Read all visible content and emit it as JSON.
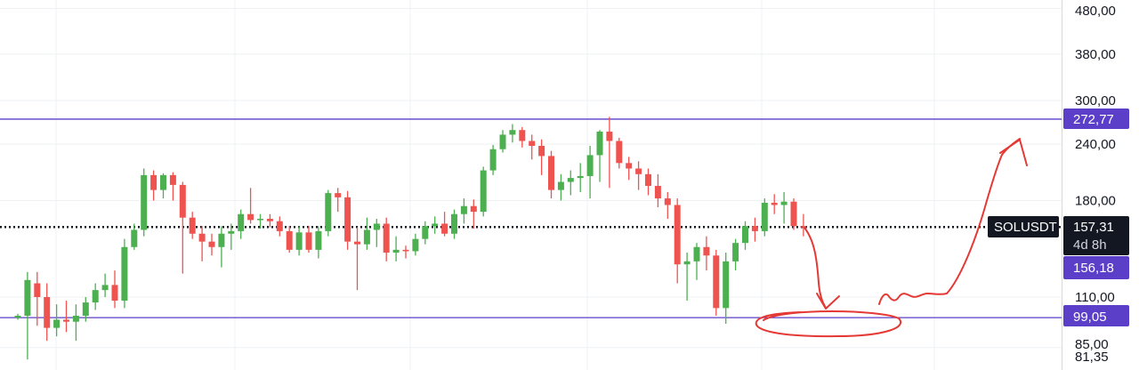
{
  "chart_data": {
    "type": "candlestick",
    "symbol": "SOLUSDT",
    "scale": "log",
    "ylim": [
      79,
      520
    ],
    "grid": true,
    "price_axis": {
      "ticks": [
        {
          "value": 480,
          "label": "480,00"
        },
        {
          "value": 380,
          "label": "380,00"
        },
        {
          "value": 300,
          "label": "300,00"
        },
        {
          "value": 240,
          "label": "240,00"
        },
        {
          "value": 180,
          "label": "180,00"
        },
        {
          "value": 110,
          "label": "110,00"
        },
        {
          "value": 85,
          "label": "85,00"
        },
        {
          "value": 81.35,
          "label": "81,35"
        }
      ]
    },
    "horizontal_levels": [
      {
        "value": 272.77,
        "label": "272,77",
        "color": "#5b3fc8"
      },
      {
        "value": 99.05,
        "label": "99,05",
        "color": "#5b3fc8"
      }
    ],
    "current_price": {
      "value": 157.31,
      "label": "157,31",
      "countdown": "4d 8h",
      "line_style": "dotted"
    },
    "secondary_price": {
      "value": 156.18,
      "label": "156,18"
    },
    "colors": {
      "up": "#26a69a",
      "up_fill": "#4caf50",
      "down": "#ef5350",
      "level": "#5b3fc8",
      "drawing": "#e53935",
      "grid": "#eef0f3"
    },
    "candles": [
      [
        99,
        101,
        98,
        100
      ],
      [
        100,
        125,
        80,
        120
      ],
      [
        118,
        125,
        95,
        110
      ],
      [
        110,
        118,
        88,
        94
      ],
      [
        94,
        106,
        90,
        98
      ],
      [
        98,
        108,
        92,
        97
      ],
      [
        97,
        106,
        88,
        100
      ],
      [
        100,
        110,
        97,
        107
      ],
      [
        107,
        118,
        103,
        114
      ],
      [
        114,
        124,
        110,
        117
      ],
      [
        117,
        126,
        104,
        108
      ],
      [
        108,
        148,
        104,
        142
      ],
      [
        142,
        160,
        140,
        155
      ],
      [
        155,
        212,
        150,
        205
      ],
      [
        205,
        210,
        180,
        190
      ],
      [
        190,
        207,
        182,
        205
      ],
      [
        205,
        208,
        180,
        195
      ],
      [
        195,
        198,
        124,
        165
      ],
      [
        165,
        170,
        148,
        152
      ],
      [
        152,
        158,
        132,
        146
      ],
      [
        146,
        152,
        136,
        142
      ],
      [
        142,
        158,
        128,
        152
      ],
      [
        152,
        160,
        140,
        154
      ],
      [
        154,
        172,
        148,
        168
      ],
      [
        168,
        192,
        160,
        163
      ],
      [
        163,
        168,
        156,
        164
      ],
      [
        164,
        168,
        157,
        162
      ],
      [
        162,
        166,
        150,
        154
      ],
      [
        154,
        158,
        138,
        140
      ],
      [
        140,
        158,
        136,
        153
      ],
      [
        153,
        158,
        138,
        140
      ],
      [
        140,
        158,
        134,
        154
      ],
      [
        154,
        190,
        150,
        187
      ],
      [
        187,
        192,
        170,
        183
      ],
      [
        183,
        189,
        140,
        146
      ],
      [
        146,
        157,
        114,
        144
      ],
      [
        144,
        165,
        140,
        155
      ],
      [
        155,
        164,
        142,
        160
      ],
      [
        160,
        165,
        132,
        138
      ],
      [
        138,
        150,
        132,
        140
      ],
      [
        140,
        143,
        134,
        139
      ],
      [
        139,
        152,
        136,
        148
      ],
      [
        148,
        162,
        144,
        158
      ],
      [
        158,
        166,
        152,
        160
      ],
      [
        160,
        170,
        150,
        152
      ],
      [
        152,
        172,
        148,
        168
      ],
      [
        168,
        182,
        160,
        175
      ],
      [
        175,
        181,
        156,
        170
      ],
      [
        170,
        214,
        166,
        210
      ],
      [
        210,
        239,
        205,
        234
      ],
      [
        234,
        258,
        230,
        252
      ],
      [
        252,
        266,
        242,
        258
      ],
      [
        258,
        262,
        236,
        244
      ],
      [
        244,
        252,
        222,
        238
      ],
      [
        238,
        246,
        205,
        226
      ],
      [
        226,
        232,
        182,
        190
      ],
      [
        190,
        206,
        180,
        198
      ],
      [
        198,
        210,
        185,
        202
      ],
      [
        202,
        218,
        188,
        204
      ],
      [
        204,
        238,
        182,
        227
      ],
      [
        227,
        258,
        198,
        256
      ],
      [
        256,
        276,
        192,
        244
      ],
      [
        244,
        248,
        212,
        218
      ],
      [
        218,
        225,
        200,
        212
      ],
      [
        212,
        220,
        190,
        206
      ],
      [
        206,
        212,
        185,
        194
      ],
      [
        194,
        206,
        174,
        182
      ],
      [
        182,
        188,
        164,
        176
      ],
      [
        176,
        182,
        118,
        130
      ],
      [
        130,
        138,
        108,
        132
      ],
      [
        132,
        145,
        120,
        142
      ],
      [
        142,
        150,
        126,
        136
      ],
      [
        136,
        140,
        100,
        104
      ],
      [
        104,
        138,
        96,
        132
      ],
      [
        132,
        148,
        126,
        145
      ],
      [
        145,
        162,
        140,
        158
      ],
      [
        158,
        165,
        146,
        154
      ],
      [
        154,
        182,
        150,
        178
      ],
      [
        178,
        186,
        168,
        176
      ],
      [
        176,
        188,
        160,
        179
      ],
      [
        179,
        182,
        155,
        158
      ],
      [
        158,
        168,
        150,
        157
      ]
    ]
  },
  "labels": {
    "symbol": "SOLUSDT",
    "current_price": "157,31",
    "countdown": "4d 8h",
    "secondary_price": "156,18",
    "level_top": "272,77",
    "level_bottom": "99,05"
  },
  "annotations": {
    "freehand_drawing": "red hand-drawn arrow path and ellipse",
    "color": "#e53935"
  }
}
